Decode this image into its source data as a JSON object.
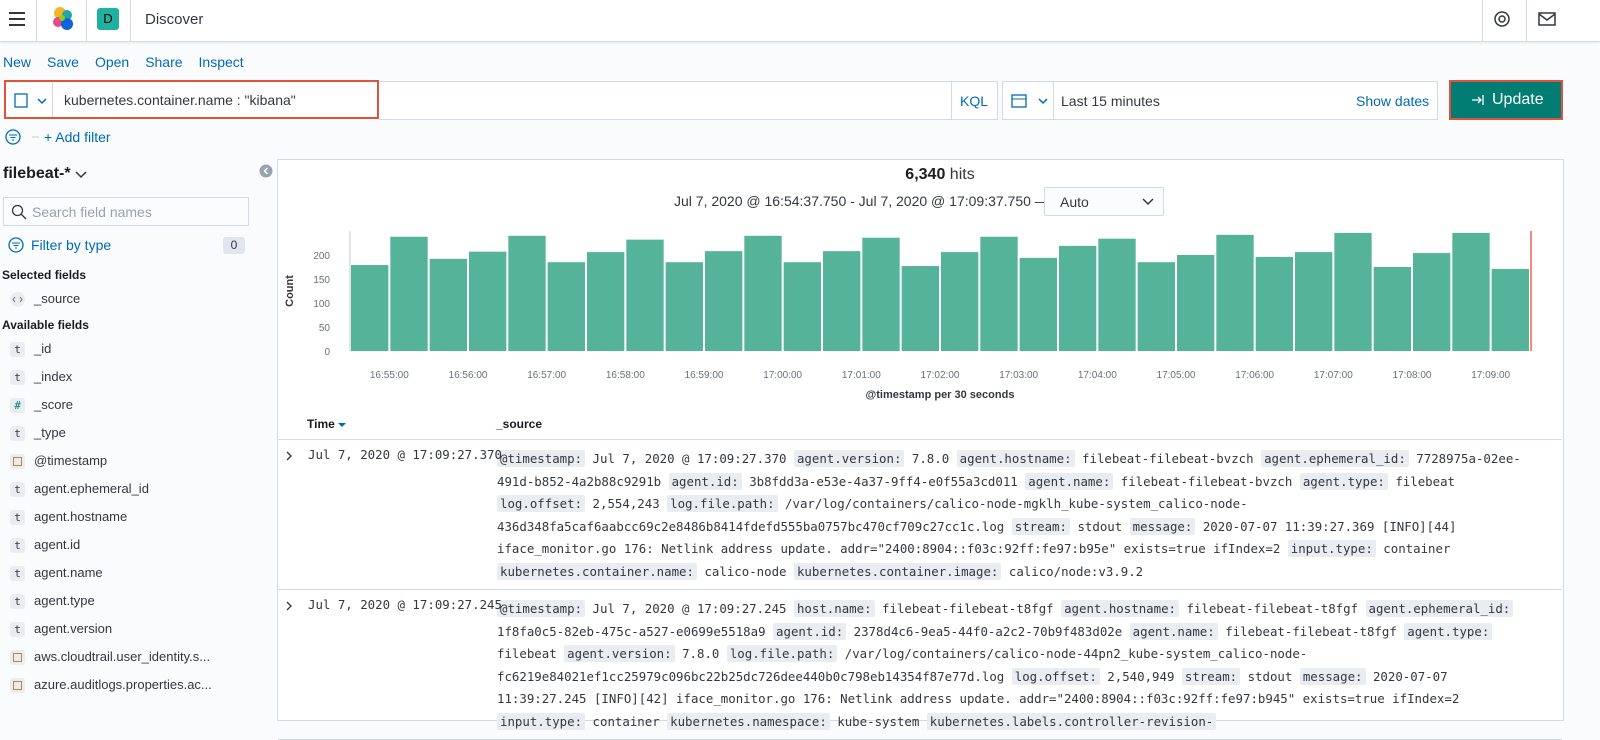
{
  "header": {
    "title": "Discover",
    "space_initial": "D"
  },
  "top_menu": [
    "New",
    "Save",
    "Open",
    "Share",
    "Inspect"
  ],
  "query": {
    "text": "kubernetes.container.name : \"kibana\"",
    "language": "KQL",
    "time_range": "Last 15 minutes",
    "show_dates": "Show dates",
    "update": "Update",
    "add_filter": "+ Add filter"
  },
  "sidebar": {
    "index_pattern": "filebeat-*",
    "search_placeholder": "Search field names",
    "filter_by_type": "Filter by type",
    "filter_count": 0,
    "selected_title": "Selected fields",
    "selected_fields": [
      {
        "type": "source",
        "name": "_source"
      }
    ],
    "available_title": "Available fields",
    "available_fields": [
      {
        "type": "string",
        "icon": "t",
        "name": "_id"
      },
      {
        "type": "string",
        "icon": "t",
        "name": "_index"
      },
      {
        "type": "number",
        "icon": "#",
        "name": "_score"
      },
      {
        "type": "string",
        "icon": "t",
        "name": "_type"
      },
      {
        "type": "date",
        "name": "@timestamp"
      },
      {
        "type": "string",
        "icon": "t",
        "name": "agent.ephemeral_id"
      },
      {
        "type": "string",
        "icon": "t",
        "name": "agent.hostname"
      },
      {
        "type": "string",
        "icon": "t",
        "name": "agent.id"
      },
      {
        "type": "string",
        "icon": "t",
        "name": "agent.name"
      },
      {
        "type": "string",
        "icon": "t",
        "name": "agent.type"
      },
      {
        "type": "string",
        "icon": "t",
        "name": "agent.version"
      },
      {
        "type": "date",
        "name": "aws.cloudtrail.user_identity.s..."
      },
      {
        "type": "date",
        "name": "azure.auditlogs.properties.ac..."
      }
    ]
  },
  "hits": {
    "count": "6,340",
    "label": "hits",
    "range": "Jul 7, 2020 @ 16:54:37.750 - Jul 7, 2020 @ 17:09:37.750 —",
    "interval": "Auto"
  },
  "chart_data": {
    "type": "bar",
    "y_label": "Count",
    "x_label": "@timestamp per 30 seconds",
    "color": "#54b399",
    "categories": [
      null,
      "16:55:00",
      null,
      "16:56:00",
      null,
      "16:57:00",
      null,
      "16:58:00",
      null,
      "16:59:00",
      null,
      "17:00:00",
      null,
      "17:01:00",
      null,
      "17:02:00",
      null,
      "17:03:00",
      null,
      "17:04:00",
      null,
      "17:05:00",
      null,
      "17:06:00",
      null,
      "17:07:00",
      null,
      "17:08:00",
      null,
      "17:09:00"
    ],
    "values": [
      179,
      238,
      192,
      207,
      240,
      185,
      206,
      232,
      185,
      208,
      240,
      185,
      208,
      236,
      177,
      206,
      238,
      194,
      219,
      234,
      185,
      200,
      242,
      196,
      206,
      246,
      175,
      204,
      246,
      171
    ],
    "ylim": [
      0,
      250
    ],
    "yticks": [
      0,
      50,
      100,
      150,
      200
    ],
    "grid": false
  },
  "table": {
    "columns": [
      "Time",
      "_source"
    ],
    "rows": [
      {
        "time": "Jul 7, 2020 @ 17:09:27.370",
        "fields": [
          {
            "key": "@timestamp:",
            "value": "Jul 7, 2020 @ 17:09:27.370"
          },
          {
            "key": "agent.version:",
            "value": "7.8.0"
          },
          {
            "key": "agent.hostname:",
            "value": "filebeat-filebeat-bvzch"
          },
          {
            "key": "agent.ephemeral_id:",
            "value": "7728975a-02ee-491d-b852-4a2b88c9291b"
          },
          {
            "key": "agent.id:",
            "value": "3b8fdd3a-e53e-4a37-9ff4-e0f55a3cd011"
          },
          {
            "key": "agent.name:",
            "value": "filebeat-filebeat-bvzch"
          },
          {
            "key": "agent.type:",
            "value": "filebeat"
          },
          {
            "key": "log.offset:",
            "value": "2,554,243"
          },
          {
            "key": "log.file.path:",
            "value": "/var/log/containers/calico-node-mgklh_kube-system_calico-node-436d348fa5caf6aabcc69c2e8486b8414fdefd555ba0757bc470cf709c27cc1c.log"
          },
          {
            "key": "stream:",
            "value": "stdout"
          },
          {
            "key": "message:",
            "value": "2020-07-07 11:39:27.369 [INFO][44] iface_monitor.go 176: Netlink address update. addr=\"2400:8904::f03c:92ff:fe97:b95e\" exists=true ifIndex=2"
          },
          {
            "key": "input.type:",
            "value": "container"
          },
          {
            "key": "kubernetes.container.name:",
            "value": "calico-node"
          },
          {
            "key": "kubernetes.container.image:",
            "value": "calico/node:v3.9.2"
          }
        ]
      },
      {
        "time": "Jul 7, 2020 @ 17:09:27.245",
        "fields": [
          {
            "key": "@timestamp:",
            "value": "Jul 7, 2020 @ 17:09:27.245"
          },
          {
            "key": "host.name:",
            "value": "filebeat-filebeat-t8fgf"
          },
          {
            "key": "agent.hostname:",
            "value": "filebeat-filebeat-t8fgf"
          },
          {
            "key": "agent.ephemeral_id:",
            "value": "1f8fa0c5-82eb-475c-a527-e0699e5518a9"
          },
          {
            "key": "agent.id:",
            "value": "2378d4c6-9ea5-44f0-a2c2-70b9f483d02e"
          },
          {
            "key": "agent.name:",
            "value": "filebeat-filebeat-t8fgf"
          },
          {
            "key": "agent.type:",
            "value": "filebeat"
          },
          {
            "key": "agent.version:",
            "value": "7.8.0"
          },
          {
            "key": "log.file.path:",
            "value": "/var/log/containers/calico-node-44pn2_kube-system_calico-node-fc6219e84021ef1cc25979c096bc22b25dc726dee440b0c798eb14354f87e77d.log"
          },
          {
            "key": "log.offset:",
            "value": "2,540,949"
          },
          {
            "key": "stream:",
            "value": "stdout"
          },
          {
            "key": "message:",
            "value": "2020-07-07 11:39:27.245 [INFO][42] iface_monitor.go 176: Netlink address update. addr=\"2400:8904::f03c:92ff:fe97:b945\" exists=true ifIndex=2"
          },
          {
            "key": "input.type:",
            "value": "container"
          },
          {
            "key": "kubernetes.namespace:",
            "value": "kube-system"
          },
          {
            "key": "kubernetes.labels.controller-revision-"
          }
        ]
      }
    ]
  }
}
